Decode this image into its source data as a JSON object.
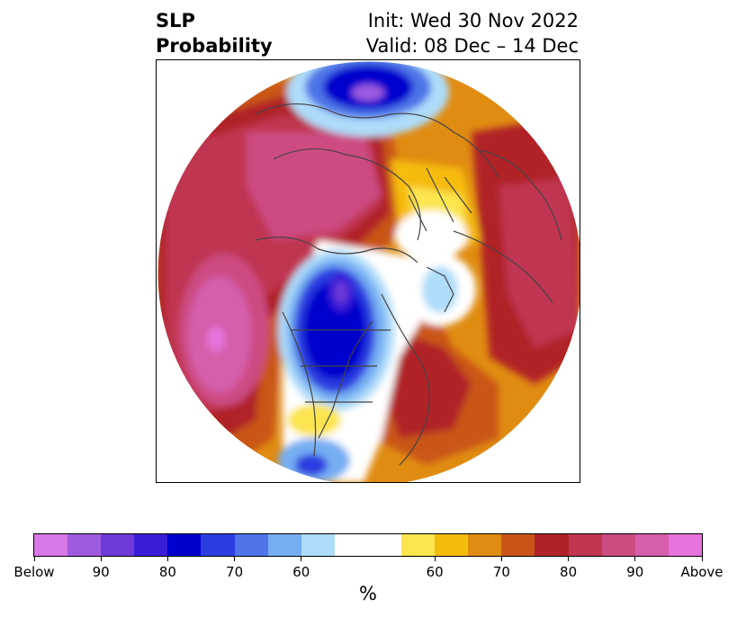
{
  "title": {
    "left_line1": "SLP",
    "left_line2": "Probability",
    "right_line1": "Init: Wed 30 Nov 2022",
    "right_line2": "Valid: 08 Dec – 14 Dec"
  },
  "colorbar": {
    "unit": "%",
    "below_colors": [
      "#d877e8",
      "#9e5be0",
      "#6e3ad8",
      "#3a1ed6",
      "#0000cc",
      "#2a3ee0",
      "#4e74e8",
      "#76aef2",
      "#aedcfa"
    ],
    "neutral_color": "#ffffff",
    "above_colors": [
      "#fde54f",
      "#f5bb0a",
      "#e08c12",
      "#c95618",
      "#b02228",
      "#c03550",
      "#cc4c82",
      "#d65eab",
      "#e574dc"
    ],
    "tick_labels": [
      "Below",
      "90",
      "80",
      "70",
      "60",
      "60",
      "70",
      "80",
      "90",
      "Above"
    ]
  }
}
